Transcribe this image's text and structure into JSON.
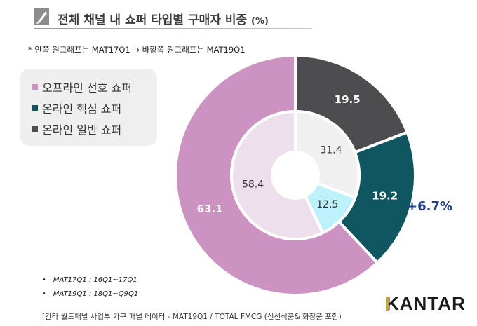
{
  "title": {
    "text": "전체 채널 내 쇼퍼 타입별 구매자 비중",
    "unit": "(%)"
  },
  "note": "* 안쪽 원그래프는 MAT17Q1 → 바깥쪽 원그래프는 MAT19Q1",
  "chart_data": {
    "type": "pie",
    "subtype": "nested-donut",
    "title": "전체 채널 내 쇼퍼 타입별 구매자 비중 (%)",
    "categories": [
      "오프라인 선호 쇼퍼",
      "온라인 핵심 쇼퍼",
      "온라인 일반 쇼퍼"
    ],
    "series": [
      {
        "name": "MAT17Q1",
        "ring": "inner",
        "values": [
          58.4,
          12.5,
          31.4
        ]
      },
      {
        "name": "MAT19Q1",
        "ring": "outer",
        "values": [
          63.1,
          19.2,
          19.5
        ]
      }
    ],
    "annotations": [
      {
        "text": "+6.7%",
        "target": "온라인 핵심 쇼퍼",
        "ring": "outer"
      }
    ],
    "legend_position": "left",
    "colors": {
      "outer": [
        "#cc92c2",
        "#0f5660",
        "#4d4d4f"
      ],
      "inner": [
        "#eedfec",
        "#bdf1fb",
        "#f0f0f0"
      ]
    },
    "label_colors": {
      "outer": [
        "#ffffff",
        "#ffffff",
        "#ffffff"
      ],
      "inner": [
        "#333333",
        "#333333",
        "#333333"
      ]
    }
  },
  "legend": {
    "items": [
      {
        "label": "오프라인 선호 쇼퍼",
        "color": "#cc92c2"
      },
      {
        "label": "온라인 핵심 쇼퍼",
        "color": "#0f5660"
      },
      {
        "label": "온라인 일반 쇼퍼",
        "color": "#4d4d4f"
      }
    ]
  },
  "change_label": "+6.7%",
  "footnotes": [
    {
      "bullet": "•",
      "text": "MAT17Q1 : 16Q1~17Q1"
    },
    {
      "bullet": "•",
      "text": "MAT19Q1 : 18Q1~Q9Q1"
    }
  ],
  "logo": {
    "text": "KANTAR",
    "first": "K",
    "rest": "ANTAR",
    "accent": "#c9a13b"
  },
  "source": "[칸타 월드패널 사업부 가구 패널 데이터 - MAT19Q1 / TOTAL FMCG (신선식품& 화장품 포함)"
}
